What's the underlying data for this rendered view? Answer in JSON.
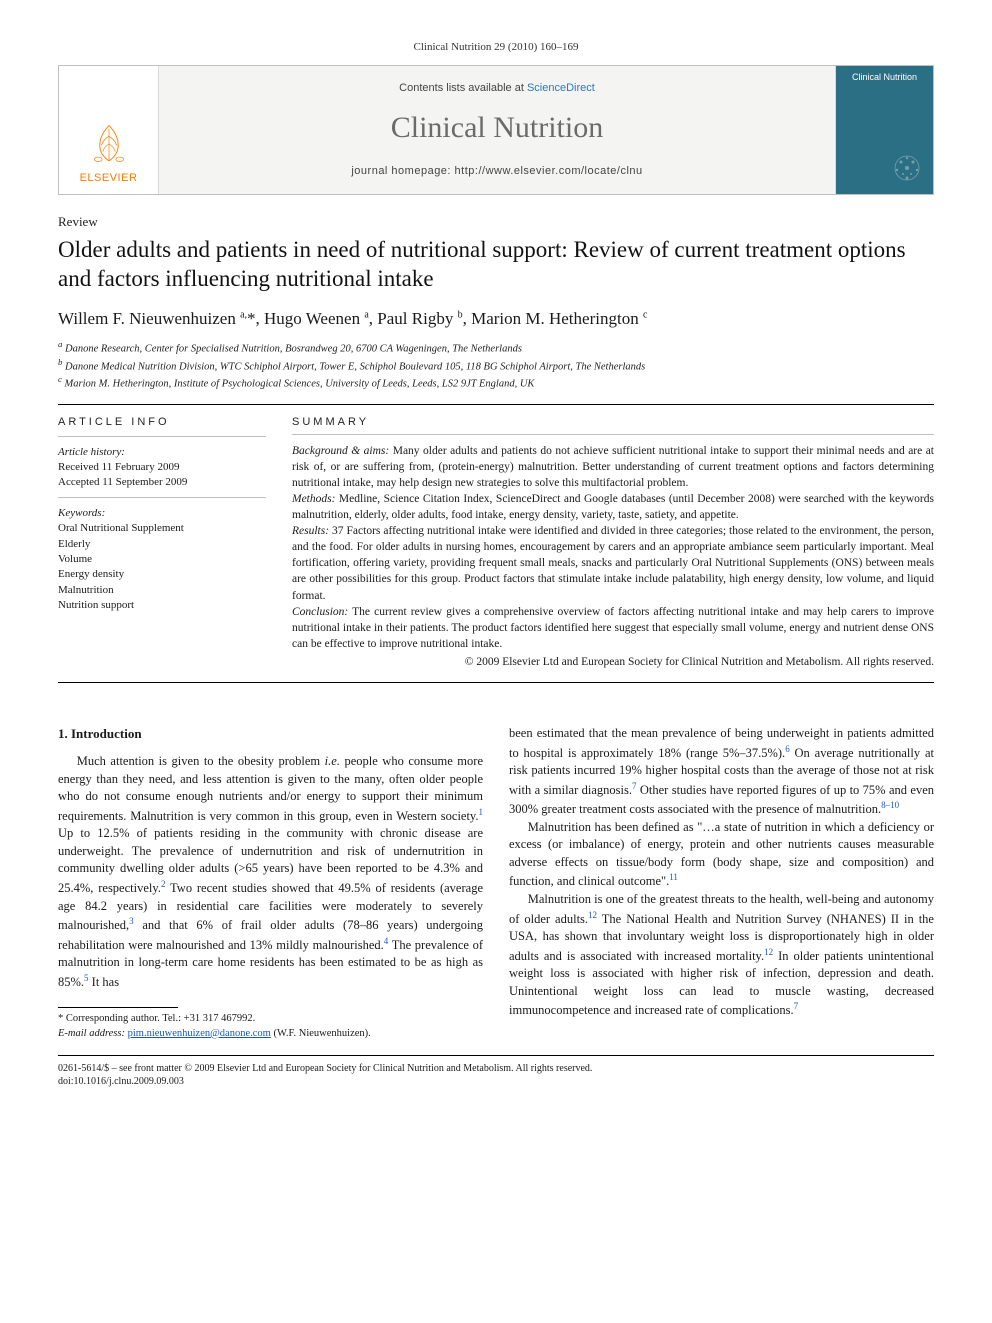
{
  "running_head": "Clinical Nutrition 29 (2010) 160–169",
  "masthead": {
    "contents_prefix": "Contents lists available at ",
    "contents_link": "ScienceDirect",
    "journal_name": "Clinical Nutrition",
    "homepage_prefix": "journal homepage: ",
    "homepage_url": "http://www.elsevier.com/locate/clnu",
    "publisher_logo_text": "ELSEVIER",
    "cover_title": "Clinical Nutrition"
  },
  "article_type": "Review",
  "title": "Older adults and patients in need of nutritional support: Review of current treatment options and factors influencing nutritional intake",
  "authors_html": "Willem F. Nieuwenhuizen <sup>a,</sup>*, Hugo Weenen <sup>a</sup>, Paul Rigby <sup>b</sup>, Marion M. Hetherington <sup>c</sup>",
  "affiliations": {
    "a": "Danone Research, Center for Specialised Nutrition, Bosrandweg 20, 6700 CA Wageningen, The Netherlands",
    "b": "Danone Medical Nutrition Division, WTC Schiphol Airport, Tower E, Schiphol Boulevard 105, 118 BG Schiphol Airport, The Netherlands",
    "c": "Marion M. Hetherington, Institute of Psychological Sciences, University of Leeds, Leeds, LS2 9JT England, UK"
  },
  "article_info": {
    "heading": "ARTICLE INFO",
    "history_label": "Article history:",
    "received": "Received 11 February 2009",
    "accepted": "Accepted 11 September 2009",
    "keywords_label": "Keywords:",
    "keywords": [
      "Oral Nutritional Supplement",
      "Elderly",
      "Volume",
      "Energy density",
      "Malnutrition",
      "Nutrition support"
    ]
  },
  "summary": {
    "heading": "SUMMARY",
    "background_label": "Background & aims:",
    "background": "Many older adults and patients do not achieve sufficient nutritional intake to support their minimal needs and are at risk of, or are suffering from, (protein-energy) malnutrition. Better understanding of current treatment options and factors determining nutritional intake, may help design new strategies to solve this multifactorial problem.",
    "methods_label": "Methods:",
    "methods": "Medline, Science Citation Index, ScienceDirect and Google databases (until December 2008) were searched with the keywords malnutrition, elderly, older adults, food intake, energy density, variety, taste, satiety, and appetite.",
    "results_label": "Results:",
    "results": "37 Factors affecting nutritional intake were identified and divided in three categories; those related to the environment, the person, and the food. For older adults in nursing homes, encouragement by carers and an appropriate ambiance seem particularly important. Meal fortification, offering variety, providing frequent small meals, snacks and particularly Oral Nutritional Supplements (ONS) between meals are other possibilities for this group. Product factors that stimulate intake include palatability, high energy density, low volume, and liquid format.",
    "conclusion_label": "Conclusion:",
    "conclusion": "The current review gives a comprehensive overview of factors affecting nutritional intake and may help carers to improve nutritional intake in their patients. The product factors identified here suggest that especially small volume, energy and nutrient dense ONS can be effective to improve nutritional intake.",
    "copyright": "© 2009 Elsevier Ltd and European Society for Clinical Nutrition and Metabolism. All rights reserved."
  },
  "intro": {
    "heading": "1. Introduction",
    "p1a": "Much attention is given to the obesity problem ",
    "p1_ie": "i.e.",
    "p1b": " people who consume more energy than they need, and less attention is given to the many, often older people who do not consume enough nutrients and/or energy to support their minimum requirements. Malnutrition is very common in this group, even in Western society.",
    "p1c": " Up to 12.5% of patients residing in the community with chronic disease are underweight. The prevalence of undernutrition and risk of undernutrition in community dwelling older adults (>65 years) have been reported to be 4.3% and 25.4%, respectively.",
    "p1d": " Two recent studies showed that 49.5% of residents (average age 84.2 years) in residential care facilities were moderately to severely malnourished,",
    "p1e": " and that 6% of frail older adults (78–86 years) undergoing rehabilitation were malnourished and 13% mildly malnourished.",
    "p1f": " The prevalence of malnutrition in long-term care home residents has been estimated to be as high as 85%.",
    "p1g": " It has ",
    "p2a": "been estimated that the mean prevalence of being underweight in patients admitted to hospital is approximately 18% (range 5%–37.5%).",
    "p2b": " On average nutritionally at risk patients incurred 19% higher hospital costs than the average of those not at risk with a similar diagnosis.",
    "p2c": " Other studies have reported figures of up to 75% and even 300% greater treatment costs associated with the presence of malnutrition.",
    "p3a": "Malnutrition has been defined as \"…a state of nutrition in which a deficiency or excess (or imbalance) of energy, protein and other nutrients causes measurable adverse effects on tissue/body form (body shape, size and composition) and function, and clinical outcome\".",
    "p4a": "Malnutrition is one of the greatest threats to the health, well-being and autonomy of older adults.",
    "p4b": " The National Health and Nutrition Survey (NHANES) II in the USA, has shown that involuntary weight loss is disproportionately high in older adults and is associated with increased mortality.",
    "p4c": " In older patients unintentional weight loss is associated with higher risk of infection, depression and death. Unintentional weight loss can lead to muscle wasting, decreased immunocompetence and increased rate of complications.",
    "refs": {
      "r1": "1",
      "r2": "2",
      "r3": "3",
      "r4": "4",
      "r5": "5",
      "r6": "6",
      "r7": "7",
      "r8_10": "8–10",
      "r11": "11",
      "r12": "12",
      "r12b": "12",
      "r7b": "7"
    }
  },
  "footnotes": {
    "corr": "* Corresponding author. Tel.: +31 317 467992.",
    "email_label": "E-mail address:",
    "email": "pim.nieuwenhuizen@danone.com",
    "email_tail": "(W.F. Nieuwenhuizen)."
  },
  "footer": {
    "line1": "0261-5614/$ – see front matter © 2009 Elsevier Ltd and European Society for Clinical Nutrition and Metabolism. All rights reserved.",
    "line2": "doi:10.1016/j.clnu.2009.09.003"
  },
  "colors": {
    "accent_orange": "#ff7a00",
    "link_blue": "#2a78c2",
    "cite_blue": "#1a57c2",
    "cover_bg": "#2b6f85"
  }
}
